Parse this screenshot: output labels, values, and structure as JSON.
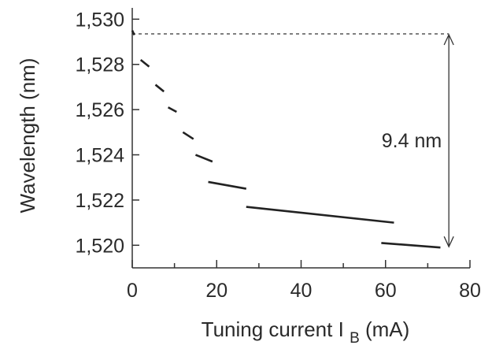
{
  "chart_data": {
    "type": "line",
    "xlabel": "Tuning current",
    "xlabel_symbol": "I",
    "xlabel_subscript": "B",
    "xlabel_unit": "(mA)",
    "ylabel": "Wavelength (nm)",
    "xlim": [
      0,
      80
    ],
    "ylim": [
      1519,
      1530.5
    ],
    "x_ticks": [
      0,
      20,
      40,
      60,
      80
    ],
    "x_tick_labels": [
      "0",
      "20",
      "40",
      "60",
      "80"
    ],
    "y_ticks": [
      1520,
      1522,
      1524,
      1526,
      1528,
      1530
    ],
    "y_tick_labels": [
      "1,520",
      "1,522",
      "1,524",
      "1,526",
      "1,528",
      "1,530"
    ],
    "grid": false,
    "segments": [
      {
        "x": [
          0,
          0.5
        ],
        "y": [
          1529.5,
          1529.3
        ]
      },
      {
        "x": [
          2,
          4
        ],
        "y": [
          1528.2,
          1527.9
        ]
      },
      {
        "x": [
          5.5,
          7.5
        ],
        "y": [
          1527.1,
          1526.8
        ]
      },
      {
        "x": [
          8.5,
          10.5
        ],
        "y": [
          1526.1,
          1525.9
        ]
      },
      {
        "x": [
          12,
          14.5
        ],
        "y": [
          1525.0,
          1524.7
        ]
      },
      {
        "x": [
          15,
          19
        ],
        "y": [
          1524.0,
          1523.7
        ]
      },
      {
        "x": [
          18,
          27
        ],
        "y": [
          1522.8,
          1522.5
        ]
      },
      {
        "x": [
          27,
          62
        ],
        "y": [
          1521.7,
          1521.0
        ]
      },
      {
        "x": [
          59,
          73
        ],
        "y": [
          1520.1,
          1519.9
        ]
      }
    ],
    "reference_line": {
      "y": 1529.35,
      "x": [
        0,
        75
      ],
      "style": "dashed"
    },
    "annotation": {
      "text": "9.4 nm",
      "x": 75,
      "y_top": 1529.35,
      "y_bottom": 1519.9
    }
  }
}
